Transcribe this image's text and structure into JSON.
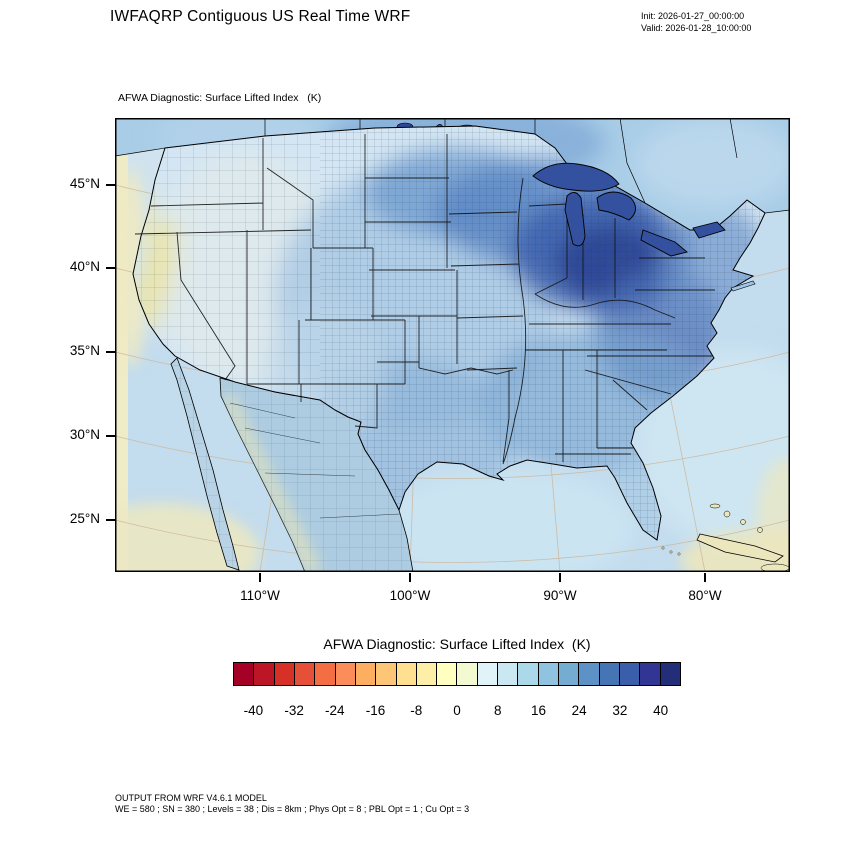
{
  "header": {
    "title": "IWFAQRP Contiguous US Real Time WRF",
    "init_label": "Init: 2026-01-27_00:00:00",
    "valid_label": "Valid: 2026-01-28_10:00:00"
  },
  "map": {
    "diagnostic_label": "AFWA Diagnostic: Surface Lifted Index   (K)",
    "lat_ticks": [
      "45°N",
      "40°N",
      "35°N",
      "30°N",
      "25°N"
    ],
    "lon_ticks": [
      "110°W",
      "100°W",
      "90°W",
      "80°W"
    ]
  },
  "colorbar": {
    "title": "AFWA Diagnostic: Surface Lifted Index  (K)",
    "tick_labels": [
      "-40",
      "-32",
      "-24",
      "-16",
      "-8",
      "0",
      "8",
      "16",
      "24",
      "32",
      "40"
    ],
    "colors": [
      "#a50026",
      "#bb1526",
      "#d73027",
      "#e65038",
      "#f46d43",
      "#fa8d59",
      "#fdae61",
      "#fdc676",
      "#fee090",
      "#feefa8",
      "#ffffbf",
      "#f3fad2",
      "#e0f3f8",
      "#c9e8f2",
      "#abd9e9",
      "#8fc3df",
      "#74add1",
      "#5c92c5",
      "#4575b4",
      "#3a5ea9",
      "#313695",
      "#222e78"
    ]
  },
  "footer": {
    "line1": "OUTPUT FROM WRF V4.6.1 MODEL",
    "line2": "WE = 580 ; SN = 380 ; Levels = 38 ; Dis = 8km ; Phys Opt = 8 ; PBL Opt = 1 ; Cu Opt = 3"
  },
  "chart_data": {
    "type": "heatmap",
    "title": "AFWA Diagnostic: Surface Lifted Index  (K)",
    "variable": "Surface Lifted Index",
    "units": "K",
    "model": "WRF V4.6.1",
    "init_time": "2026-01-27_00:00:00",
    "valid_time": "2026-01-28_10:00:00",
    "axis": {
      "lat_ticks_deg_north": [
        45,
        40,
        35,
        30,
        25
      ],
      "lon_ticks_deg_west": [
        110,
        100,
        90,
        80
      ]
    },
    "colorbar": {
      "labeled_levels": [
        -40,
        -32,
        -24,
        -16,
        -8,
        0,
        8,
        16,
        24,
        32,
        40
      ],
      "level_step": 4,
      "range": [
        -44,
        44
      ],
      "n_colors": 22,
      "orientation": "horizontal",
      "position": "bottom"
    },
    "field_summary": [
      {
        "region": "Ohio Valley / Great Lakes / Upper Midwest",
        "approx_value_K": "28 to 40 (darkest blue maximum)"
      },
      {
        "region": "Northeast / Appalachians",
        "approx_value_K": "20 to 32"
      },
      {
        "region": "Central and Southern Plains, Texas, Southeast",
        "approx_value_K": "12 to 24"
      },
      {
        "region": "Interior West / Rockies",
        "approx_value_K": "4 to 12"
      },
      {
        "region": "California Central Valley and Oregon coast",
        "approx_value_K": "-4 to 4 (pale yellow minimum)"
      },
      {
        "region": "Oceans, Gulf of Mexico, offshore Atlantic",
        "approx_value_K": "8 to 16"
      },
      {
        "region": "Far west map edge, Bahamas/Cuba corner",
        "approx_value_K": "-4 to 4"
      }
    ],
    "grid_info": "WE = 580 ; SN = 380 ; Levels = 38 ; Dis = 8km ; Phys Opt = 8 ; PBL Opt = 1 ; Cu Opt = 3"
  }
}
